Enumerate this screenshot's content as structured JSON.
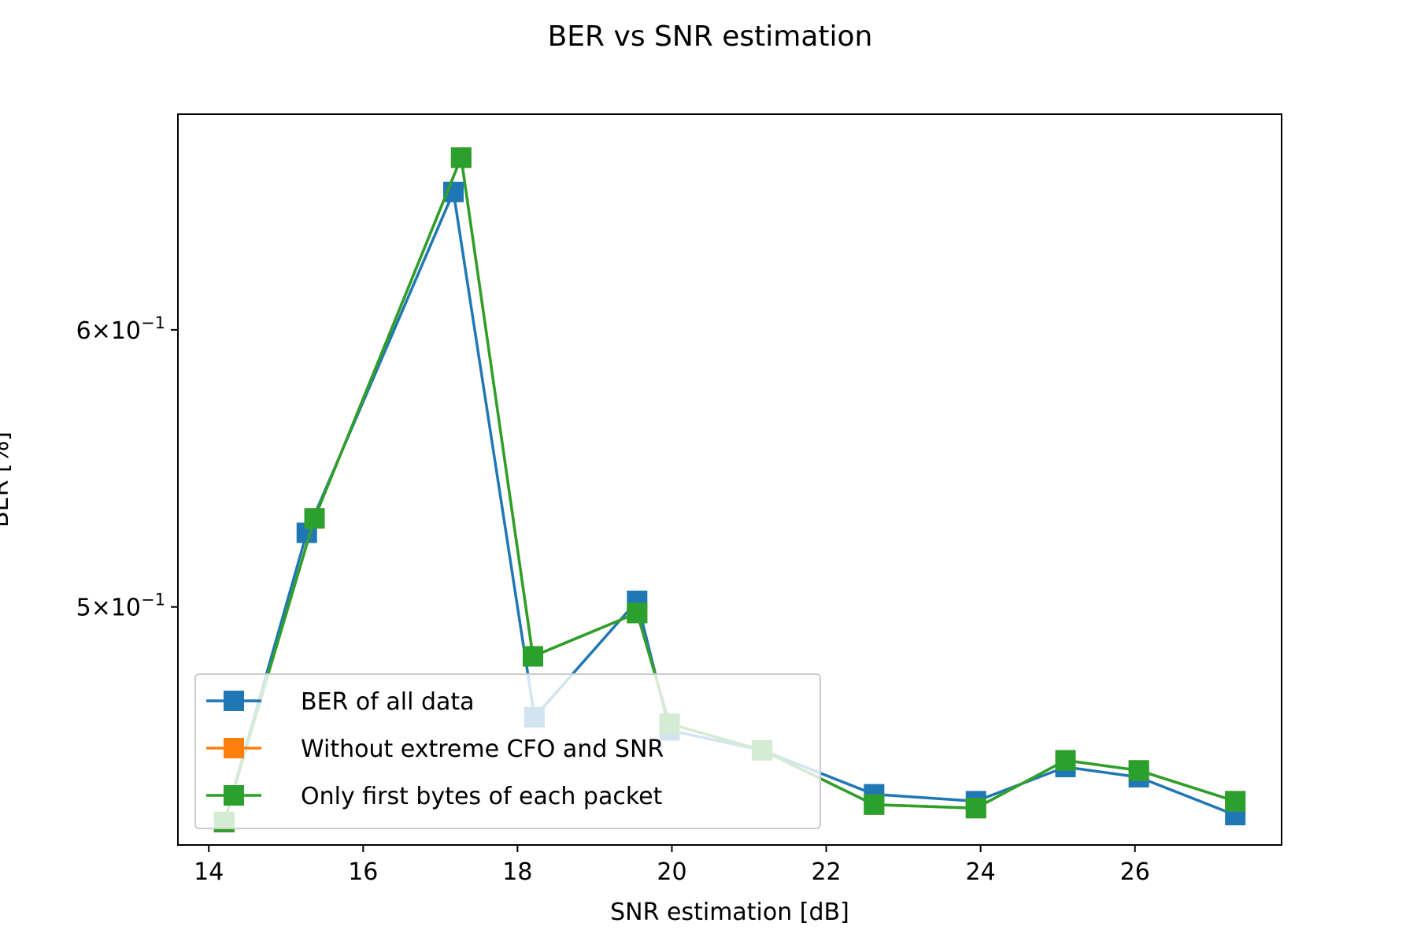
{
  "chart_data": {
    "type": "line",
    "title": "BER vs SNR estimation",
    "xlabel": "SNR estimation [dB]",
    "ylabel": "BER [%]",
    "xlim": [
      13.6,
      27.9
    ],
    "ylim": [
      0.4275,
      0.6915
    ],
    "y_scale": "log",
    "grid": false,
    "legend_position": "lower-left",
    "x_ticks": [
      {
        "value": 14,
        "label": "14"
      },
      {
        "value": 16,
        "label": "16"
      },
      {
        "value": 18,
        "label": "18"
      },
      {
        "value": 20,
        "label": "20"
      },
      {
        "value": 22,
        "label": "22"
      },
      {
        "value": 24,
        "label": "24"
      },
      {
        "value": 26,
        "label": "26"
      }
    ],
    "y_ticks": [
      {
        "value": 0.5,
        "base": "5",
        "exp": "−1"
      },
      {
        "value": 0.6,
        "base": "6",
        "exp": "−1"
      }
    ],
    "series": [
      {
        "name": "BER of all data",
        "color": "#1f77b4",
        "marker": "square",
        "x": [
          14.2,
          15.27,
          17.17,
          18.22,
          19.55,
          19.97,
          21.17,
          22.62,
          23.94,
          25.1,
          26.05,
          27.3
        ],
        "y": [
          0.434,
          0.525,
          0.657,
          0.465,
          0.502,
          0.461,
          0.455,
          0.442,
          0.44,
          0.45,
          0.447,
          0.436
        ]
      },
      {
        "name": "Without extreme CFO and SNR",
        "color": "#ff7f0e",
        "marker": "square",
        "x": [
          14.2,
          15.37,
          17.27,
          18.2,
          19.55,
          19.97,
          21.17,
          22.62,
          23.94,
          25.1,
          26.05,
          27.3
        ],
        "y": [
          0.434,
          0.53,
          0.672,
          0.484,
          0.498,
          0.463,
          0.455,
          0.439,
          0.438,
          0.452,
          0.449,
          0.44
        ]
      },
      {
        "name": "Only first bytes of each packet",
        "color": "#2ca02c",
        "marker": "square",
        "x": [
          14.2,
          15.37,
          17.27,
          18.2,
          19.55,
          19.97,
          21.17,
          22.62,
          23.94,
          25.1,
          26.05,
          27.3
        ],
        "y": [
          0.434,
          0.53,
          0.672,
          0.484,
          0.498,
          0.463,
          0.455,
          0.439,
          0.438,
          0.452,
          0.449,
          0.44
        ]
      }
    ]
  }
}
